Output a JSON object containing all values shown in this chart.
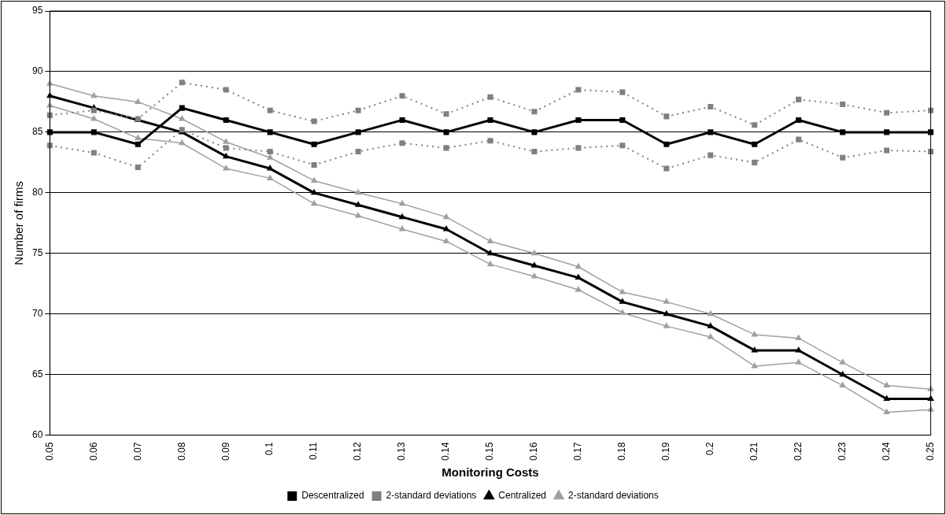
{
  "chart_data": {
    "type": "line",
    "xlabel": "Monitoring Costs",
    "ylabel": "Number of firms",
    "categories": [
      "0.05",
      "0.06",
      "0.07",
      "0.08",
      "0.09",
      "0.1",
      "0.11",
      "0.12",
      "0.13",
      "0.14",
      "0.15",
      "0.16",
      "0.17",
      "0.18",
      "0.19",
      "0.2",
      "0.21",
      "0.22",
      "0.23",
      "0.24",
      "0.25"
    ],
    "ylim": [
      60,
      95
    ],
    "yticks": [
      60,
      65,
      70,
      75,
      80,
      85,
      90,
      95
    ],
    "grid": "y",
    "legend": "bottom",
    "series": [
      {
        "name": "Descentralized",
        "color": "#000000",
        "marker": "square",
        "line_style": "solid",
        "values": [
          85,
          85,
          84,
          87,
          86,
          85,
          84,
          85,
          86,
          85,
          86,
          85,
          86,
          86,
          84,
          85,
          84,
          86,
          85,
          85,
          85
        ]
      },
      {
        "name": "2-standard deviations",
        "color": "#808080",
        "marker": "square",
        "line_style": "dotted",
        "values": [
          86.4,
          86.8,
          86.1,
          89.1,
          88.5,
          86.8,
          85.9,
          86.8,
          88.0,
          86.5,
          87.9,
          86.7,
          88.5,
          88.3,
          86.3,
          87.1,
          85.6,
          87.7,
          87.3,
          86.6,
          86.8
        ]
      },
      {
        "color": "#808080",
        "marker": "square",
        "line_style": "dotted",
        "values": [
          83.9,
          83.3,
          82.1,
          85.2,
          83.7,
          83.4,
          82.3,
          83.4,
          84.1,
          83.7,
          84.3,
          83.4,
          83.7,
          83.9,
          82.0,
          83.1,
          82.5,
          84.4,
          82.9,
          83.5,
          83.4
        ]
      },
      {
        "name": "Centralized",
        "color": "#000000",
        "marker": "triangle",
        "line_style": "solid",
        "values": [
          88,
          87,
          86,
          85,
          83,
          82,
          80,
          79,
          78,
          77,
          75,
          74,
          73,
          71,
          70,
          69,
          67,
          67,
          65,
          63,
          63
        ]
      },
      {
        "name": "2-standard deviations",
        "color": "#a0a0a0",
        "marker": "triangle",
        "line_style": "solid",
        "values": [
          89,
          88,
          87.5,
          86.1,
          84.2,
          82.9,
          81,
          80,
          79.1,
          78,
          76,
          75,
          73.9,
          71.8,
          71,
          70,
          68.3,
          68,
          66,
          64.1,
          63.8
        ]
      },
      {
        "color": "#a0a0a0",
        "marker": "triangle",
        "line_style": "solid",
        "values": [
          87.2,
          86.1,
          84.5,
          84.1,
          82,
          81.2,
          79.1,
          78.1,
          77,
          76,
          74.1,
          73.1,
          72,
          70.1,
          69,
          68.1,
          65.7,
          66,
          64.1,
          61.9,
          62.1
        ]
      }
    ]
  }
}
